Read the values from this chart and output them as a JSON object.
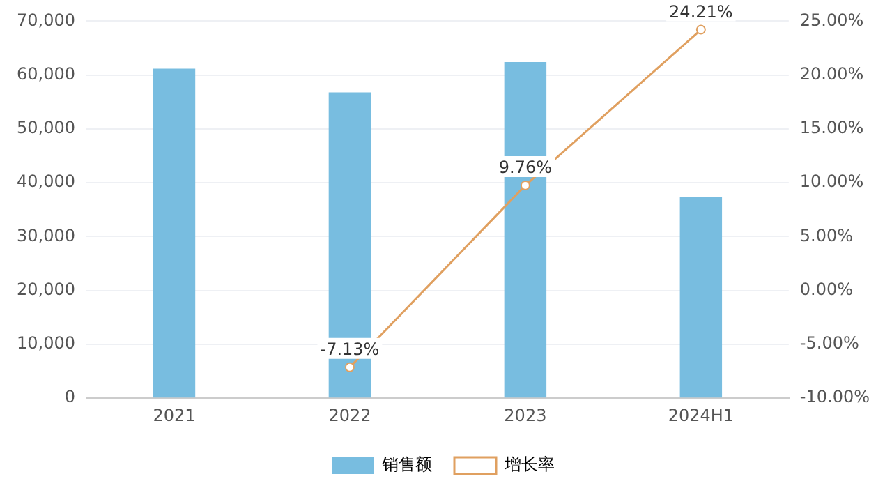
{
  "chart_data": {
    "type": "bar",
    "categories": [
      "2021",
      "2022",
      "2023",
      "2024H1"
    ],
    "series": [
      {
        "name": "销售额",
        "color": "#78bde0",
        "values": [
          61200,
          56800,
          62400,
          37300
        ]
      },
      {
        "name": "增长率",
        "type": "line",
        "axis": "y2",
        "color": "#e0a060",
        "values": [
          null,
          -7.13,
          9.76,
          24.21
        ],
        "value_labels": [
          null,
          "-7.13%",
          "9.76%",
          "24.21%"
        ]
      }
    ],
    "ylim": [
      0,
      70000
    ],
    "yticks": [
      {
        "value": 0,
        "label": "0"
      },
      {
        "value": 10000,
        "label": "10,000"
      },
      {
        "value": 20000,
        "label": "20,000"
      },
      {
        "value": 30000,
        "label": "30,000"
      },
      {
        "value": 40000,
        "label": "40,000"
      },
      {
        "value": 50000,
        "label": "50,000"
      },
      {
        "value": 60000,
        "label": "60,000"
      },
      {
        "value": 70000,
        "label": "70,000"
      }
    ],
    "y2lim": [
      -10,
      25
    ],
    "y2ticks": [
      {
        "value": -10,
        "label": "-10.00%"
      },
      {
        "value": -5,
        "label": "-5.00%"
      },
      {
        "value": 0,
        "label": "0.00%"
      },
      {
        "value": 5,
        "label": "5.00%"
      },
      {
        "value": 10,
        "label": "10.00%"
      },
      {
        "value": 15,
        "label": "15.00%"
      },
      {
        "value": 20,
        "label": "20.00%"
      },
      {
        "value": 25,
        "label": "25.00%"
      }
    ],
    "grid": "y",
    "legend": "bottom",
    "marker": "circle"
  }
}
